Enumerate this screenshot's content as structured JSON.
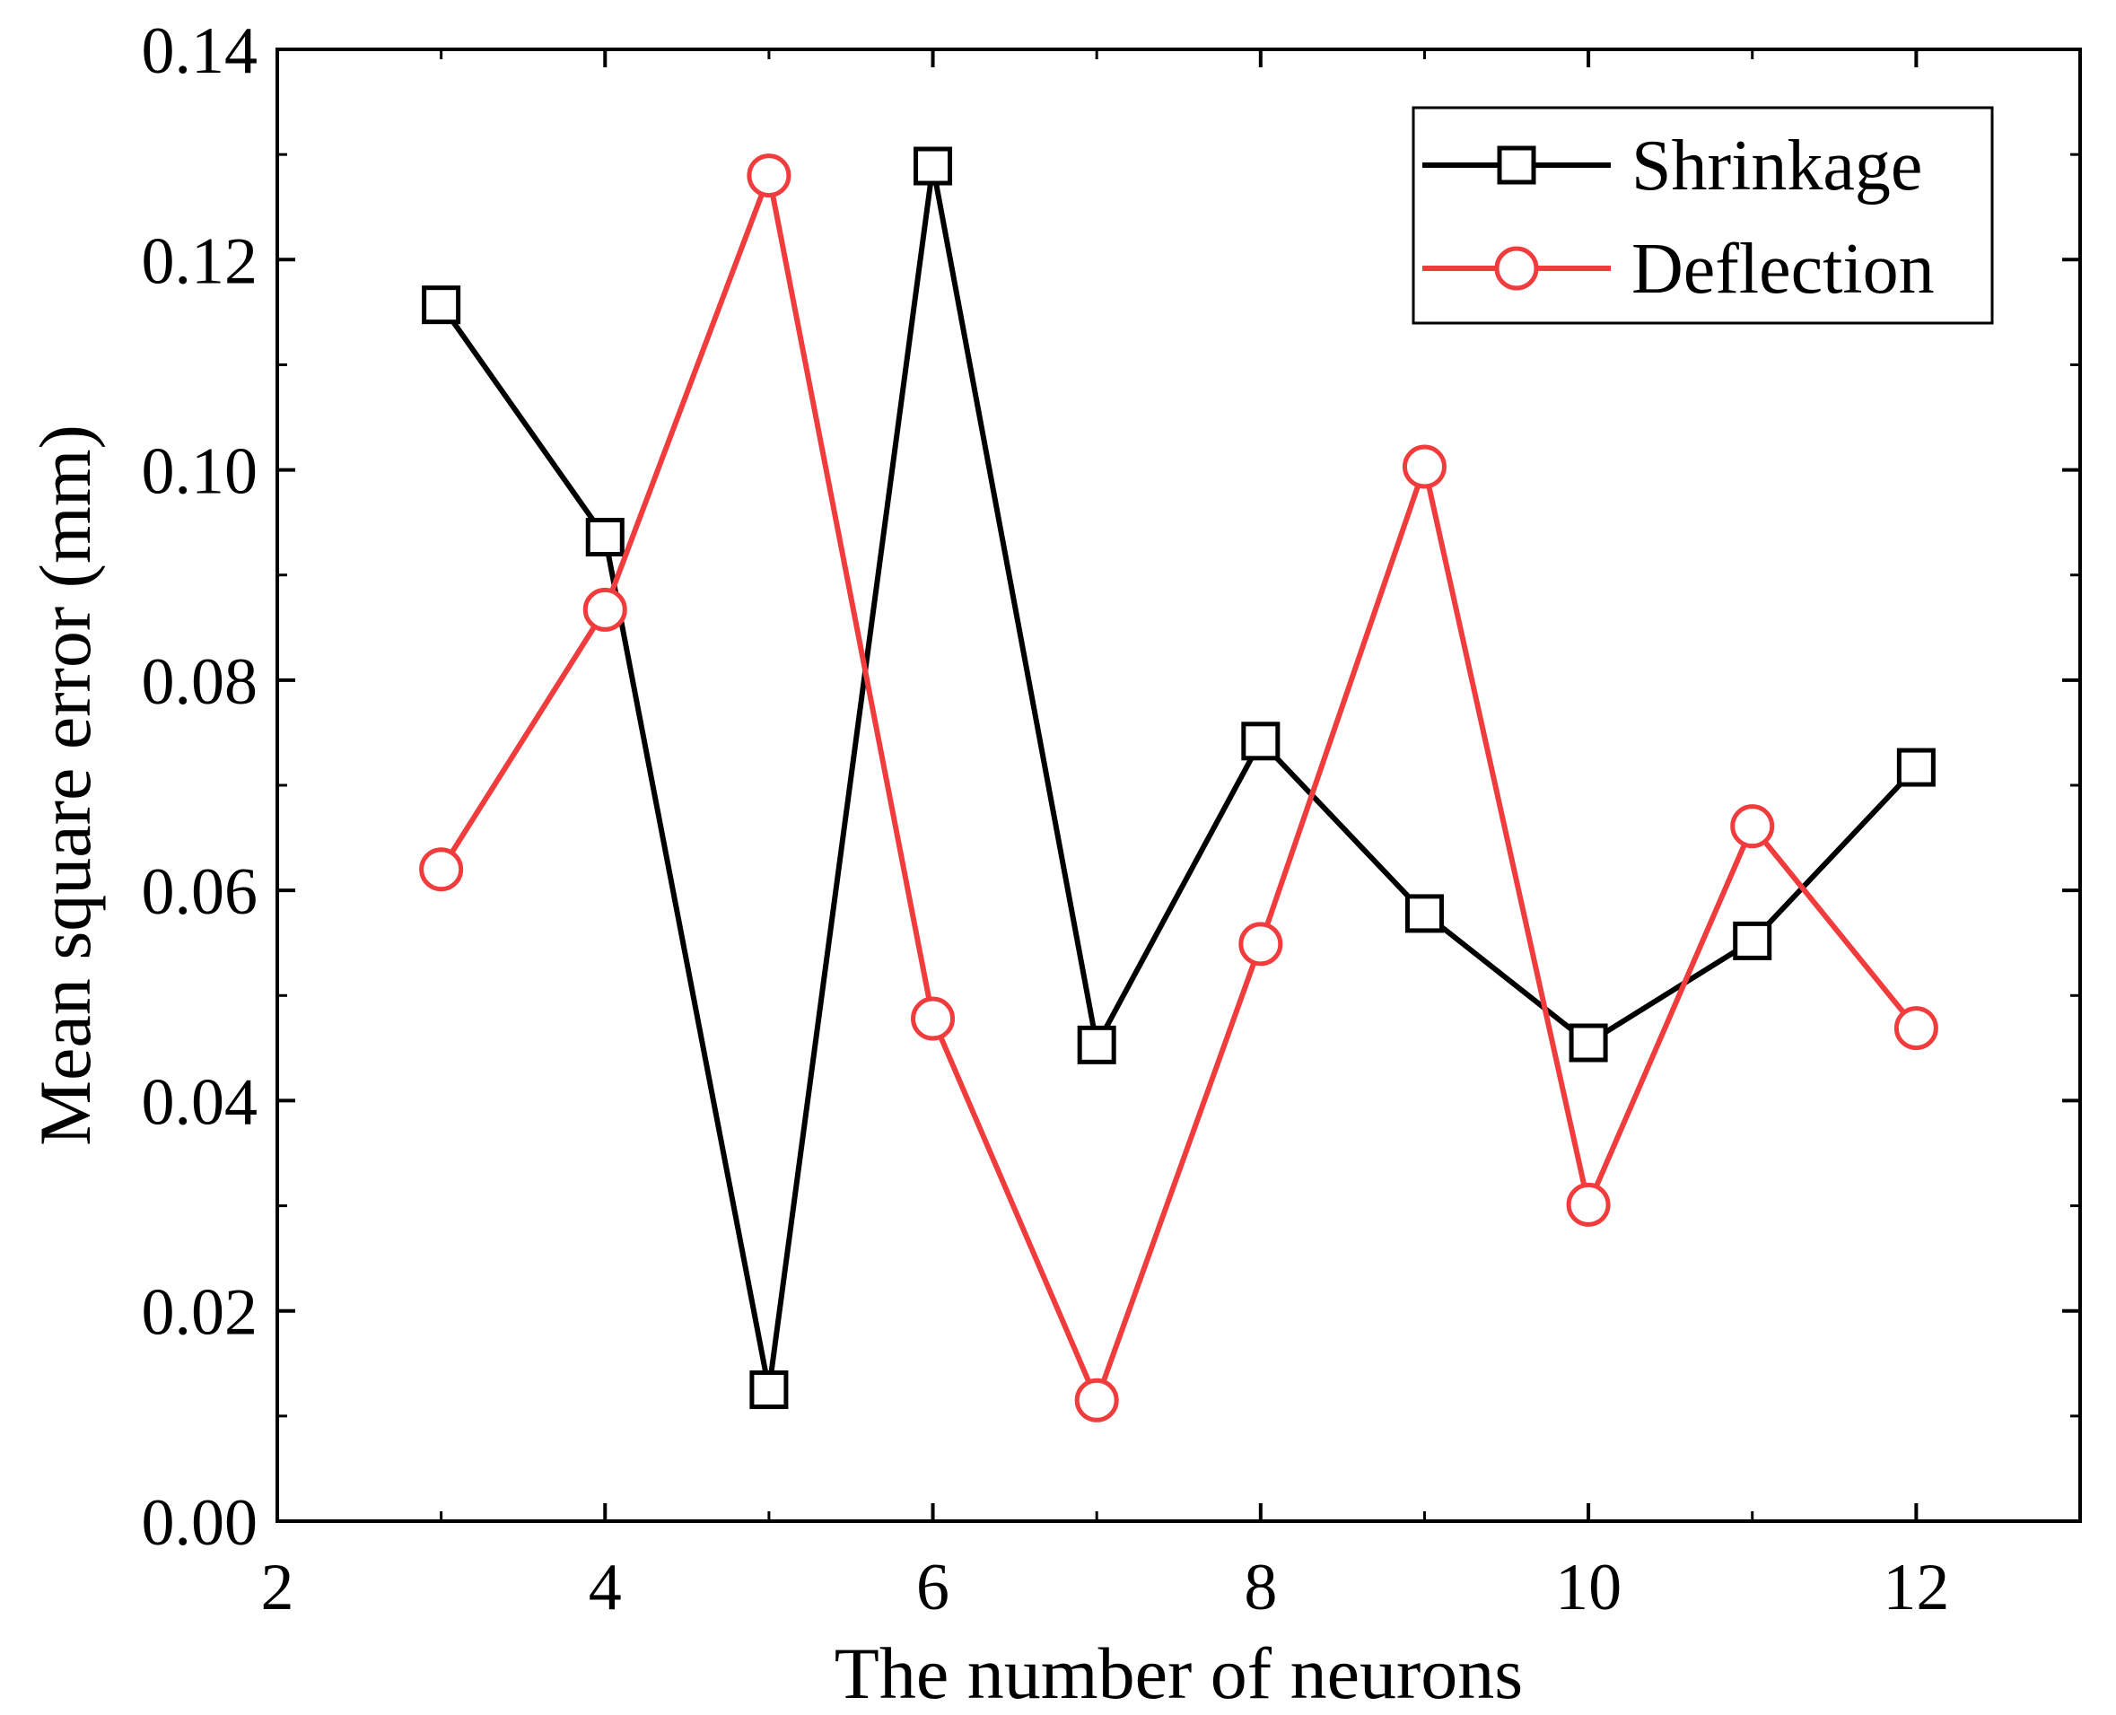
{
  "chart_data": {
    "type": "line",
    "title": "",
    "xlabel": "The number of neurons",
    "ylabel": "Mean square error (mm)",
    "xlim": [
      2,
      13
    ],
    "ylim": [
      0,
      0.14
    ],
    "x_major_ticks": [
      2,
      4,
      6,
      8,
      10,
      12
    ],
    "x_minor_ticks": [
      3,
      5,
      7,
      9,
      11,
      13
    ],
    "x_tick_labels": [
      "2",
      "4",
      "6",
      "8",
      "10",
      "12"
    ],
    "y_major_ticks": [
      0,
      0.02,
      0.04,
      0.06,
      0.08,
      0.1,
      0.12,
      0.14
    ],
    "y_minor_ticks": [
      0.01,
      0.03,
      0.05,
      0.07,
      0.09,
      0.11,
      0.13
    ],
    "y_tick_labels": [
      "0.00",
      "0.02",
      "0.04",
      "0.06",
      "0.08",
      "0.10",
      "0.12",
      "0.14"
    ],
    "x": [
      3,
      4,
      5,
      6,
      7,
      8,
      9,
      10,
      11,
      12
    ],
    "grid": false,
    "legend_position": "top-right",
    "series": [
      {
        "name": "Shrinkage",
        "color": "#000000",
        "marker": "square",
        "values": [
          0.1157,
          0.0936,
          0.0125,
          0.1289,
          0.0453,
          0.0742,
          0.0578,
          0.0455,
          0.0552,
          0.0717
        ]
      },
      {
        "name": "Deflection",
        "color": "#f03c3c",
        "marker": "circle",
        "values": [
          0.062,
          0.0867,
          0.128,
          0.0478,
          0.0115,
          0.0549,
          0.1003,
          0.0301,
          0.0661,
          0.0469
        ]
      }
    ]
  }
}
